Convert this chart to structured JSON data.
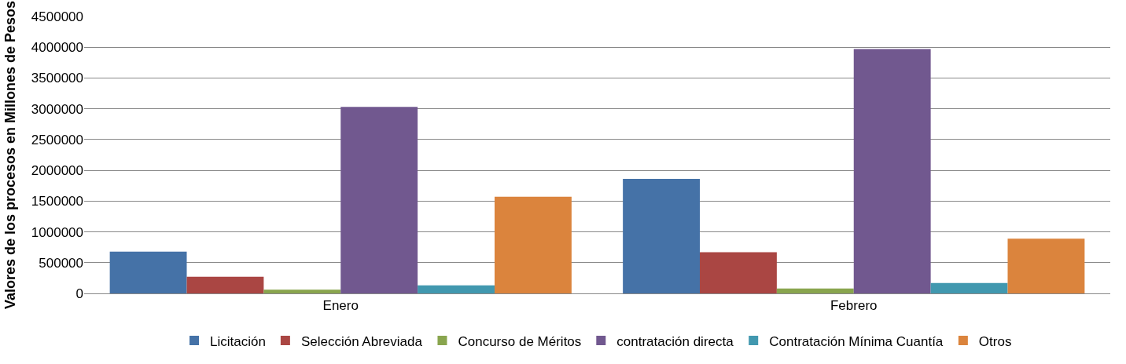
{
  "chart_data": {
    "type": "bar",
    "ylabel": "Valores de los procesos en Millones de Pesos",
    "categories": [
      "Enero",
      "Febrero"
    ],
    "series": [
      {
        "name": "Licitación",
        "color": "#4572a7",
        "values": [
          680000,
          1860000
        ]
      },
      {
        "name": "Selección Abreviada",
        "color": "#aa4643",
        "values": [
          270000,
          670000
        ]
      },
      {
        "name": "Concurso de Méritos",
        "color": "#89a54e",
        "values": [
          60000,
          80000
        ]
      },
      {
        "name": "contratación directa",
        "color": "#71588f",
        "values": [
          3030000,
          3970000
        ]
      },
      {
        "name": "Contratación Mínima Cuantía",
        "color": "#4198af",
        "values": [
          130000,
          170000
        ]
      },
      {
        "name": "Otros",
        "color": "#db843d",
        "values": [
          1570000,
          890000
        ]
      }
    ],
    "ylim": [
      0,
      4500000
    ],
    "yticks": [
      0,
      500000,
      1000000,
      1500000,
      2000000,
      2500000,
      3000000,
      3500000,
      4000000,
      4500000
    ],
    "grid": "y",
    "legend": "bottom"
  }
}
